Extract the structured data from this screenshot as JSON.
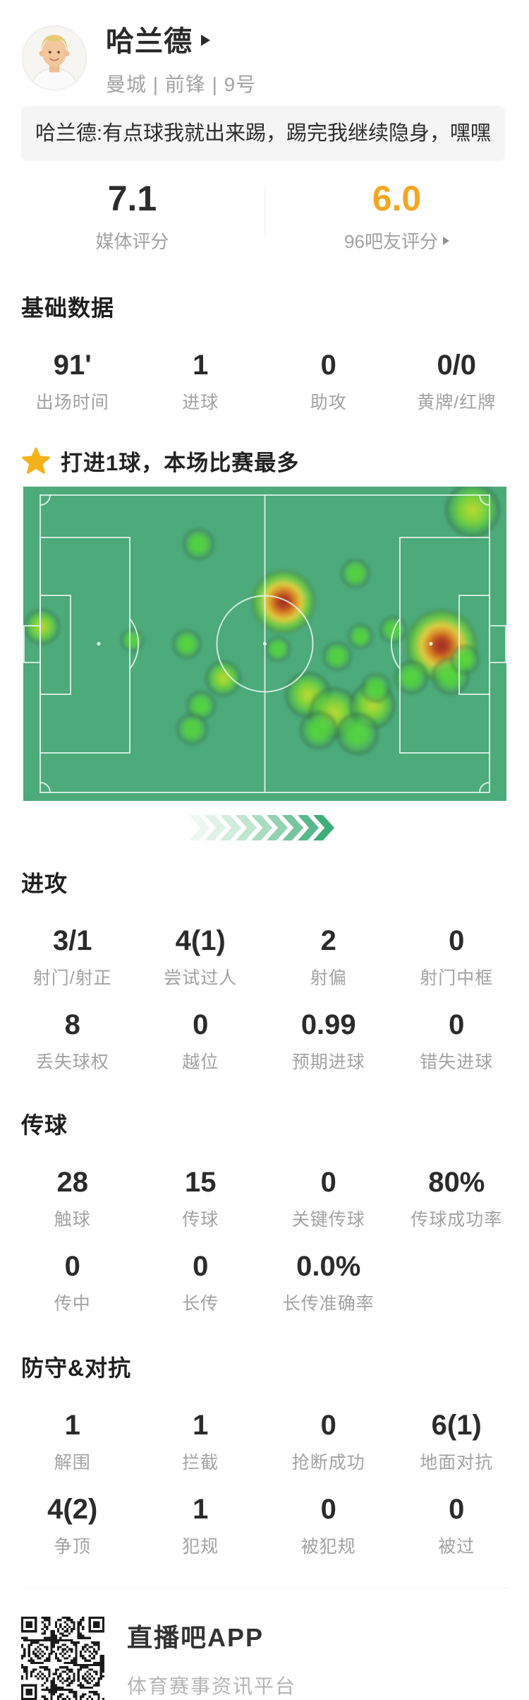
{
  "player": {
    "name": "哈兰德",
    "team_line": "曼城 | 前锋 | 9号"
  },
  "quote": "哈兰德:有点球我就出来踢，踢完我继续隐身，嘿嘿",
  "ratings": {
    "media": {
      "value": "7.1",
      "label": "媒体评分"
    },
    "fans": {
      "value": "6.0",
      "label": "96吧友评分",
      "accent_color": "#f5a623"
    }
  },
  "basic": {
    "heading": "基础数据",
    "items": [
      {
        "value": "91'",
        "label": "出场时间"
      },
      {
        "value": "1",
        "label": "进球"
      },
      {
        "value": "0",
        "label": "助攻"
      },
      {
        "value": "0/0",
        "label": "黄牌/红牌"
      }
    ]
  },
  "highlight": {
    "icon": "star-icon",
    "icon_color": "#f6b21b",
    "text": "打进1球，本场比赛最多"
  },
  "heatmap": {
    "pitch_color": "#4caa7b",
    "line_color": "#e9f6ef",
    "points": [
      {
        "x": 93.0,
        "y": 7.4,
        "r": 26,
        "k": "gy"
      },
      {
        "x": 36.4,
        "y": 18.4,
        "r": 15,
        "k": "g"
      },
      {
        "x": 68.9,
        "y": 27.6,
        "r": 14,
        "k": "g"
      },
      {
        "x": 53.9,
        "y": 36.6,
        "r": 30,
        "k": "hot"
      },
      {
        "x": 4.0,
        "y": 44.5,
        "r": 17,
        "k": "gy"
      },
      {
        "x": 22.6,
        "y": 48.8,
        "r": 11,
        "k": "g"
      },
      {
        "x": 33.9,
        "y": 50.0,
        "r": 14,
        "k": "g"
      },
      {
        "x": 52.8,
        "y": 51.7,
        "r": 12,
        "k": "g"
      },
      {
        "x": 65.0,
        "y": 53.9,
        "r": 14,
        "k": "g"
      },
      {
        "x": 76.6,
        "y": 45.6,
        "r": 13,
        "k": "g"
      },
      {
        "x": 69.9,
        "y": 47.6,
        "r": 12,
        "k": "g"
      },
      {
        "x": 86.7,
        "y": 50.6,
        "r": 34,
        "k": "hot"
      },
      {
        "x": 88.6,
        "y": 60.2,
        "r": 18,
        "k": "g"
      },
      {
        "x": 91.5,
        "y": 55.0,
        "r": 14,
        "k": "g"
      },
      {
        "x": 41.5,
        "y": 61.1,
        "r": 17,
        "k": "gy"
      },
      {
        "x": 36.8,
        "y": 69.7,
        "r": 14,
        "k": "g"
      },
      {
        "x": 35.0,
        "y": 77.1,
        "r": 15,
        "k": "g"
      },
      {
        "x": 59.1,
        "y": 66.3,
        "r": 22,
        "k": "gy"
      },
      {
        "x": 64.5,
        "y": 71.9,
        "r": 24,
        "k": "gy"
      },
      {
        "x": 72.3,
        "y": 69.7,
        "r": 22,
        "k": "gy"
      },
      {
        "x": 69.3,
        "y": 78.7,
        "r": 20,
        "k": "g"
      },
      {
        "x": 61.3,
        "y": 77.5,
        "r": 18,
        "k": "g"
      },
      {
        "x": 80.3,
        "y": 60.7,
        "r": 16,
        "k": "g"
      },
      {
        "x": 73.0,
        "y": 64.0,
        "r": 14,
        "k": "g"
      }
    ]
  },
  "chevrons": {
    "colors": [
      "#edf7f1",
      "#e0f2e8",
      "#d2ecdd",
      "#c0e5d1",
      "#abdcc2",
      "#93d2b2",
      "#77c5a0",
      "#58b88c",
      "#3ead7a"
    ]
  },
  "attack": {
    "heading": "进攻",
    "rows": [
      [
        {
          "value": "3/1",
          "label": "射门/射正"
        },
        {
          "value": "4(1)",
          "label": "尝试过人"
        },
        {
          "value": "2",
          "label": "射偏"
        },
        {
          "value": "0",
          "label": "射门中框"
        }
      ],
      [
        {
          "value": "8",
          "label": "丢失球权"
        },
        {
          "value": "0",
          "label": "越位"
        },
        {
          "value": "0.99",
          "label": "预期进球"
        },
        {
          "value": "0",
          "label": "错失进球"
        }
      ]
    ]
  },
  "passing": {
    "heading": "传球",
    "rows": [
      [
        {
          "value": "28",
          "label": "触球"
        },
        {
          "value": "15",
          "label": "传球"
        },
        {
          "value": "0",
          "label": "关键传球"
        },
        {
          "value": "80%",
          "label": "传球成功率"
        }
      ],
      [
        {
          "value": "0",
          "label": "传中"
        },
        {
          "value": "0",
          "label": "长传"
        },
        {
          "value": "0.0%",
          "label": "长传准确率"
        }
      ]
    ]
  },
  "defense": {
    "heading": "防守&对抗",
    "rows": [
      [
        {
          "value": "1",
          "label": "解围"
        },
        {
          "value": "1",
          "label": "拦截"
        },
        {
          "value": "0",
          "label": "抢断成功"
        },
        {
          "value": "6(1)",
          "label": "地面对抗"
        }
      ],
      [
        {
          "value": "4(2)",
          "label": "争顶"
        },
        {
          "value": "1",
          "label": "犯规"
        },
        {
          "value": "0",
          "label": "被犯规"
        },
        {
          "value": "0",
          "label": "被过"
        }
      ]
    ]
  },
  "footer": {
    "app_name": "直播吧APP",
    "tagline": "体育赛事资讯平台"
  }
}
